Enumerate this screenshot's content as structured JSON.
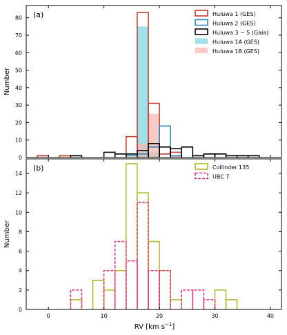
{
  "chart_data": [
    {
      "type": "histogram",
      "panel_label": "(a)",
      "ylabel": "Number",
      "xlim": [
        -4,
        42
      ],
      "ylim": [
        0,
        87
      ],
      "yticks": [
        0,
        10,
        20,
        30,
        40,
        50,
        60,
        70,
        80
      ],
      "xticks": [
        0,
        10,
        20,
        30,
        40
      ],
      "legend_position": "top-right",
      "series": [
        {
          "name": "Huluwa 1A (GES)",
          "style": "filled",
          "color": "#7fd6e3",
          "bins": [
            {
              "x0": 16,
              "x1": 18,
              "value": 75
            },
            {
              "x0": 18,
              "x1": 20,
              "value": 3
            }
          ]
        },
        {
          "name": "Huluwa 1B (GES)",
          "style": "filled",
          "color": "#f6b9b3",
          "bins": [
            {
              "x0": 16,
              "x1": 18,
              "value": 8
            },
            {
              "x0": 18,
              "x1": 20,
              "value": 25
            },
            {
              "x0": 22,
              "x1": 24,
              "value": 1
            }
          ]
        },
        {
          "name": "Huluwa 1 (GES)",
          "style": "step",
          "color": "#c0392b",
          "bins": [
            {
              "x0": -2,
              "x1": 0,
              "value": 1
            },
            {
              "x0": 2,
              "x1": 4,
              "value": 1
            },
            {
              "x0": 14,
              "x1": 16,
              "value": 12
            },
            {
              "x0": 16,
              "x1": 18,
              "value": 83
            },
            {
              "x0": 18,
              "x1": 20,
              "value": 31
            },
            {
              "x0": 20,
              "x1": 22,
              "value": 2
            },
            {
              "x0": 22,
              "x1": 24,
              "value": 3
            }
          ]
        },
        {
          "name": "Huluwa 2 (GES)",
          "style": "step",
          "color": "#2e86b6",
          "bins": [
            {
              "x0": 14,
              "x1": 16,
              "value": 1
            },
            {
              "x0": 16,
              "x1": 18,
              "value": 2
            },
            {
              "x0": 18,
              "x1": 20,
              "value": 6
            },
            {
              "x0": 20,
              "x1": 22,
              "value": 18
            },
            {
              "x0": 22,
              "x1": 24,
              "value": 1
            }
          ]
        },
        {
          "name": "Huluwa 3 − 5 (Gaia)",
          "style": "step",
          "color": "#000000",
          "bins": [
            {
              "x0": 4,
              "x1": 6,
              "value": 1
            },
            {
              "x0": 10,
              "x1": 12,
              "value": 3
            },
            {
              "x0": 12,
              "x1": 14,
              "value": 2
            },
            {
              "x0": 14,
              "x1": 16,
              "value": 2
            },
            {
              "x0": 16,
              "x1": 18,
              "value": 4
            },
            {
              "x0": 18,
              "x1": 20,
              "value": 8
            },
            {
              "x0": 20,
              "x1": 22,
              "value": 6
            },
            {
              "x0": 22,
              "x1": 24,
              "value": 5
            },
            {
              "x0": 24,
              "x1": 26,
              "value": 6
            },
            {
              "x0": 26,
              "x1": 28,
              "value": 1
            },
            {
              "x0": 28,
              "x1": 30,
              "value": 2
            },
            {
              "x0": 30,
              "x1": 32,
              "value": 2
            },
            {
              "x0": 32,
              "x1": 34,
              "value": 1
            },
            {
              "x0": 34,
              "x1": 36,
              "value": 1
            },
            {
              "x0": 36,
              "x1": 38,
              "value": 1
            }
          ]
        }
      ],
      "legend_order": [
        "Huluwa 1 (GES)",
        "Huluwa 2 (GES)",
        "Huluwa 3 − 5 (Gaia)",
        "Huluwa 1A (GES)",
        "Huluwa 1B (GES)"
      ]
    },
    {
      "type": "histogram",
      "panel_label": "(b)",
      "ylabel": "Number",
      "xlabel": "RV [km s⁻¹]",
      "xlim": [
        -4,
        42
      ],
      "ylim": [
        0,
        15.5
      ],
      "yticks": [
        0,
        2,
        4,
        6,
        8,
        10,
        12,
        14
      ],
      "xticks": [
        0,
        10,
        20,
        30,
        40
      ],
      "legend_position": "top-right",
      "series": [
        {
          "name": "Collinder 135",
          "style": "step",
          "color": "#b5b82e",
          "bins": [
            {
              "x0": 4,
              "x1": 6,
              "value": 1
            },
            {
              "x0": 8,
              "x1": 10,
              "value": 3
            },
            {
              "x0": 10,
              "x1": 12,
              "value": 2
            },
            {
              "x0": 12,
              "x1": 14,
              "value": 4
            },
            {
              "x0": 14,
              "x1": 16,
              "value": 15
            },
            {
              "x0": 16,
              "x1": 18,
              "value": 12
            },
            {
              "x0": 18,
              "x1": 20,
              "value": 7
            },
            {
              "x0": 20,
              "x1": 22,
              "value": 4
            },
            {
              "x0": 22,
              "x1": 24,
              "value": 1
            },
            {
              "x0": 30,
              "x1": 32,
              "value": 2
            },
            {
              "x0": 32,
              "x1": 34,
              "value": 1
            }
          ]
        },
        {
          "name": "UBC 7",
          "style": "dashed",
          "color": "#e0337d",
          "bins": [
            {
              "x0": 4,
              "x1": 6,
              "value": 2
            },
            {
              "x0": 10,
              "x1": 12,
              "value": 4
            },
            {
              "x0": 12,
              "x1": 14,
              "value": 7
            },
            {
              "x0": 14,
              "x1": 16,
              "value": 5
            },
            {
              "x0": 16,
              "x1": 18,
              "value": 11
            },
            {
              "x0": 18,
              "x1": 20,
              "value": 4
            },
            {
              "x0": 20,
              "x1": 22,
              "value": 4
            },
            {
              "x0": 24,
              "x1": 26,
              "value": 2
            },
            {
              "x0": 26,
              "x1": 28,
              "value": 2
            },
            {
              "x0": 28,
              "x1": 30,
              "value": 1
            }
          ]
        }
      ],
      "legend_order": [
        "Collinder 135",
        "UBC 7"
      ]
    }
  ]
}
